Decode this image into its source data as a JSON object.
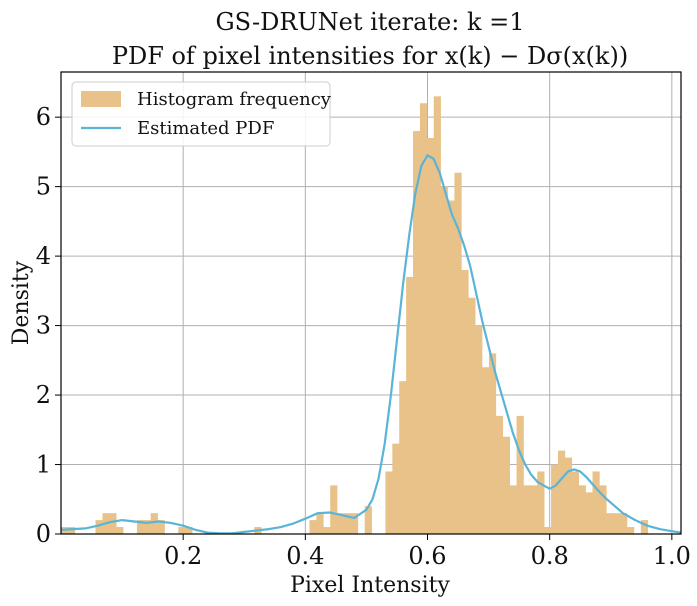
{
  "chart_data": {
    "type": "bar",
    "title_line1": "GS-DRUNet iterate: k =1",
    "title_line2": "PDF of pixel intensities for x(k) − Dσ(x(k))",
    "xlabel": "Pixel Intensity",
    "ylabel": "Density",
    "xlim": [
      0.0,
      1.015
    ],
    "ylim": [
      0,
      6.65
    ],
    "xticks": [
      0.2,
      0.4,
      0.6,
      0.8,
      1.0
    ],
    "xtick_labels": [
      "0.2",
      "0.4",
      "0.6",
      "0.8",
      "1.0"
    ],
    "yticks": [
      0,
      1,
      2,
      3,
      4,
      5,
      6
    ],
    "ytick_labels": [
      "0",
      "1",
      "2",
      "3",
      "4",
      "5",
      "6"
    ],
    "grid": true,
    "legend_position": "top-left",
    "legend": [
      {
        "label": "Histogram frequency",
        "kind": "patch",
        "color": "#e8c288"
      },
      {
        "label": "Estimated PDF",
        "kind": "line",
        "color": "#5ab4d8"
      }
    ],
    "histogram": {
      "name": "Histogram frequency",
      "color": "#e8c288",
      "bin_start": 0.0,
      "bin_width": 0.0113,
      "values": [
        0.1,
        0.1,
        0.0,
        0.0,
        0.0,
        0.2,
        0.3,
        0.3,
        0.1,
        0.0,
        0.0,
        0.2,
        0.2,
        0.3,
        0.2,
        0.0,
        0.0,
        0.1,
        0.1,
        0.0,
        0.0,
        0.0,
        0.0,
        0.0,
        0.0,
        0.0,
        0.0,
        0.0,
        0.1,
        0.0,
        0.0,
        0.0,
        0.0,
        0.0,
        0.0,
        0.0,
        0.2,
        0.3,
        0.1,
        0.7,
        0.3,
        0.3,
        0.3,
        0.0,
        0.4,
        0.0,
        0.0,
        0.9,
        1.3,
        2.2,
        3.7,
        5.8,
        6.2,
        5.7,
        6.3,
        5.0,
        4.8,
        5.2,
        3.8,
        3.4,
        3.0,
        2.4,
        2.6,
        1.7,
        1.4,
        0.7,
        1.7,
        0.7,
        0.7,
        0.9,
        0.1,
        1.0,
        1.2,
        1.1,
        0.9,
        0.7,
        0.6,
        0.9,
        0.7,
        0.3,
        0.3,
        0.3,
        0.1,
        0.0,
        0.2
      ]
    },
    "pdf": {
      "name": "Estimated PDF",
      "color": "#5ab4d8",
      "x": [
        0.0,
        0.02,
        0.04,
        0.06,
        0.08,
        0.1,
        0.12,
        0.14,
        0.16,
        0.18,
        0.2,
        0.22,
        0.24,
        0.26,
        0.28,
        0.3,
        0.32,
        0.34,
        0.36,
        0.38,
        0.4,
        0.42,
        0.44,
        0.46,
        0.48,
        0.5,
        0.51,
        0.52,
        0.53,
        0.54,
        0.55,
        0.56,
        0.57,
        0.58,
        0.59,
        0.6,
        0.61,
        0.62,
        0.63,
        0.64,
        0.65,
        0.66,
        0.67,
        0.68,
        0.69,
        0.7,
        0.71,
        0.72,
        0.73,
        0.74,
        0.75,
        0.76,
        0.77,
        0.78,
        0.79,
        0.8,
        0.81,
        0.82,
        0.83,
        0.84,
        0.85,
        0.86,
        0.87,
        0.88,
        0.89,
        0.9,
        0.92,
        0.94,
        0.96,
        0.98,
        1.0,
        1.015
      ],
      "y": [
        0.06,
        0.07,
        0.08,
        0.12,
        0.17,
        0.2,
        0.18,
        0.16,
        0.18,
        0.16,
        0.12,
        0.06,
        0.02,
        0.01,
        0.01,
        0.03,
        0.05,
        0.07,
        0.1,
        0.15,
        0.22,
        0.3,
        0.31,
        0.27,
        0.23,
        0.35,
        0.5,
        0.8,
        1.3,
        2.0,
        2.8,
        3.6,
        4.3,
        4.9,
        5.3,
        5.45,
        5.4,
        5.2,
        4.9,
        4.6,
        4.4,
        4.15,
        3.85,
        3.45,
        3.05,
        2.7,
        2.35,
        2.05,
        1.75,
        1.45,
        1.2,
        1.0,
        0.85,
        0.75,
        0.7,
        0.65,
        0.7,
        0.8,
        0.9,
        0.93,
        0.9,
        0.82,
        0.72,
        0.62,
        0.53,
        0.45,
        0.3,
        0.2,
        0.12,
        0.07,
        0.04,
        0.02
      ]
    }
  }
}
